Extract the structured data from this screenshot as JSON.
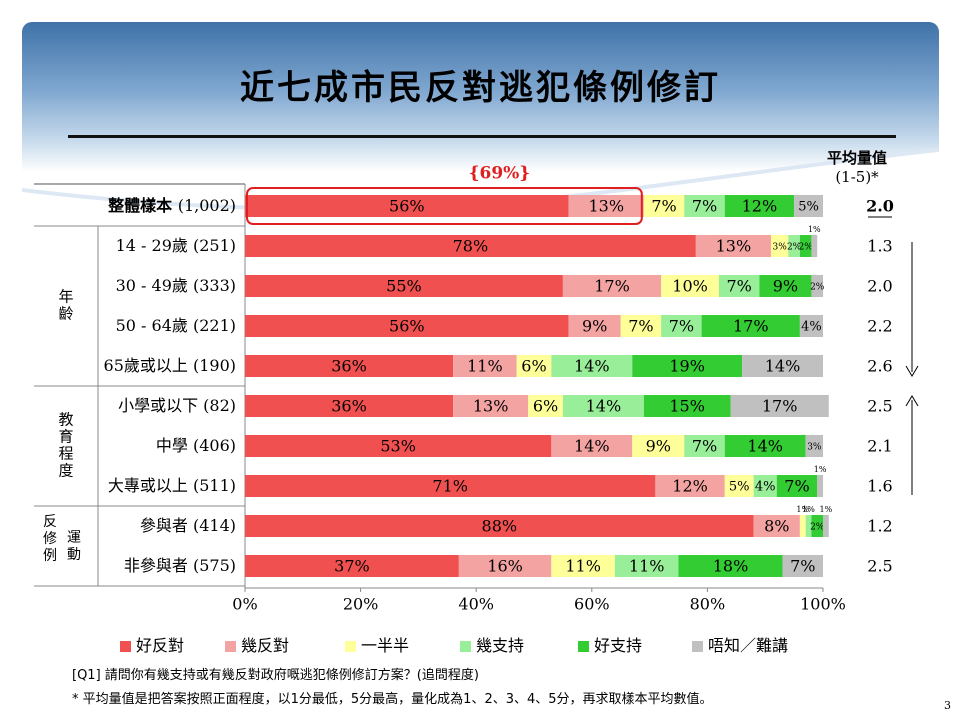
{
  "title": "近七成市民反對逃犯條例修訂",
  "avg_header": "平均量值",
  "avg_subheader": "(1-5)*",
  "highlight_label": "{69%}",
  "page_number": "3",
  "footnotes": [
    "[Q1] 請問你有幾支持或有幾反對政府嘅逃犯條例修訂方案？(追問程度)",
    "* 平均量值是把答案按照正面程度，以1分最低，5分最高，量化成為1、2、3、4、5分，再求取樣本平均數值。"
  ],
  "colors": {
    "strongly_oppose": "#f05050",
    "oppose": "#f4a3a3",
    "neutral": "#ffff99",
    "support": "#99ee99",
    "strongly_support": "#33cc33",
    "dont_know": "#c0c0c0",
    "highlight_box": "#e02020"
  },
  "chart_data": {
    "type": "bar",
    "orientation": "horizontal",
    "stacked": true,
    "xlim": [
      0,
      100
    ],
    "x_ticks": [
      "0%",
      "20%",
      "40%",
      "60%",
      "80%",
      "100%"
    ],
    "series": [
      {
        "name": "好反對",
        "color_key": "strongly_oppose"
      },
      {
        "name": "幾反對",
        "color_key": "oppose"
      },
      {
        "name": "一半半",
        "color_key": "neutral"
      },
      {
        "name": "幾支持",
        "color_key": "support"
      },
      {
        "name": "好支持",
        "color_key": "strongly_support"
      },
      {
        "name": "唔知／難講",
        "color_key": "dont_know"
      }
    ],
    "rows": [
      {
        "label": "整體樣本",
        "n": "(1,002)",
        "bold": true,
        "values": [
          56,
          13,
          7,
          7,
          12,
          5
        ],
        "labels": [
          "56%",
          "13%",
          "7%",
          "7%",
          "12%",
          "5%"
        ],
        "avg": "2.0"
      },
      {
        "label": "14 - 29歲",
        "n": "(251)",
        "values": [
          78,
          13,
          3,
          2,
          2,
          1
        ],
        "labels": [
          "78%",
          "13%",
          "3%",
          "2%",
          "2%",
          "1%"
        ],
        "avg": "1.3"
      },
      {
        "label": "30 - 49歲",
        "n": "(333)",
        "values": [
          55,
          17,
          10,
          7,
          9,
          2
        ],
        "labels": [
          "55%",
          "17%",
          "10%",
          "7%",
          "9%",
          "2%"
        ],
        "avg": "2.0"
      },
      {
        "label": "50 - 64歲",
        "n": "(221)",
        "values": [
          56,
          9,
          7,
          7,
          17,
          4
        ],
        "labels": [
          "56%",
          "9%",
          "7%",
          "7%",
          "17%",
          "4%"
        ],
        "avg": "2.2"
      },
      {
        "label": "65歲或以上",
        "n": "(190)",
        "values": [
          36,
          11,
          6,
          14,
          19,
          14
        ],
        "labels": [
          "36%",
          "11%",
          "6%",
          "14%",
          "19%",
          "14%"
        ],
        "avg": "2.6"
      },
      {
        "label": "小學或以下",
        "n": "(82)",
        "values": [
          36,
          13,
          6,
          14,
          15,
          17
        ],
        "labels": [
          "36%",
          "13%",
          "6%",
          "14%",
          "15%",
          "17%"
        ],
        "avg": "2.5"
      },
      {
        "label": "中學",
        "n": "(406)",
        "values": [
          53,
          14,
          9,
          7,
          14,
          3
        ],
        "labels": [
          "53%",
          "14%",
          "9%",
          "7%",
          "14%",
          "3%"
        ],
        "avg": "2.1"
      },
      {
        "label": "大專或以上",
        "n": "(511)",
        "values": [
          71,
          12,
          5,
          4,
          7,
          1
        ],
        "labels": [
          "71%",
          "12%",
          "5%",
          "4%",
          "7%",
          "1%"
        ],
        "avg": "1.6"
      },
      {
        "label": "參與者",
        "n": "(414)",
        "values": [
          88,
          8,
          1,
          1,
          2,
          1
        ],
        "labels": [
          "88%",
          "8%",
          "1%",
          "1%",
          "2%",
          "1%"
        ],
        "avg": "1.2"
      },
      {
        "label": "非參與者",
        "n": "(575)",
        "values": [
          37,
          16,
          11,
          11,
          18,
          7
        ],
        "labels": [
          "37%",
          "16%",
          "11%",
          "11%",
          "18%",
          "7%"
        ],
        "avg": "2.5"
      }
    ],
    "groups": [
      {
        "label": "年齡",
        "rows": [
          1,
          4
        ]
      },
      {
        "label": "教育程度",
        "rows": [
          5,
          7
        ]
      },
      {
        "label": "反修例運動",
        "rows": [
          8,
          9
        ]
      }
    ],
    "highlight": {
      "label": "{69%}",
      "row": 0,
      "value": 69
    }
  }
}
